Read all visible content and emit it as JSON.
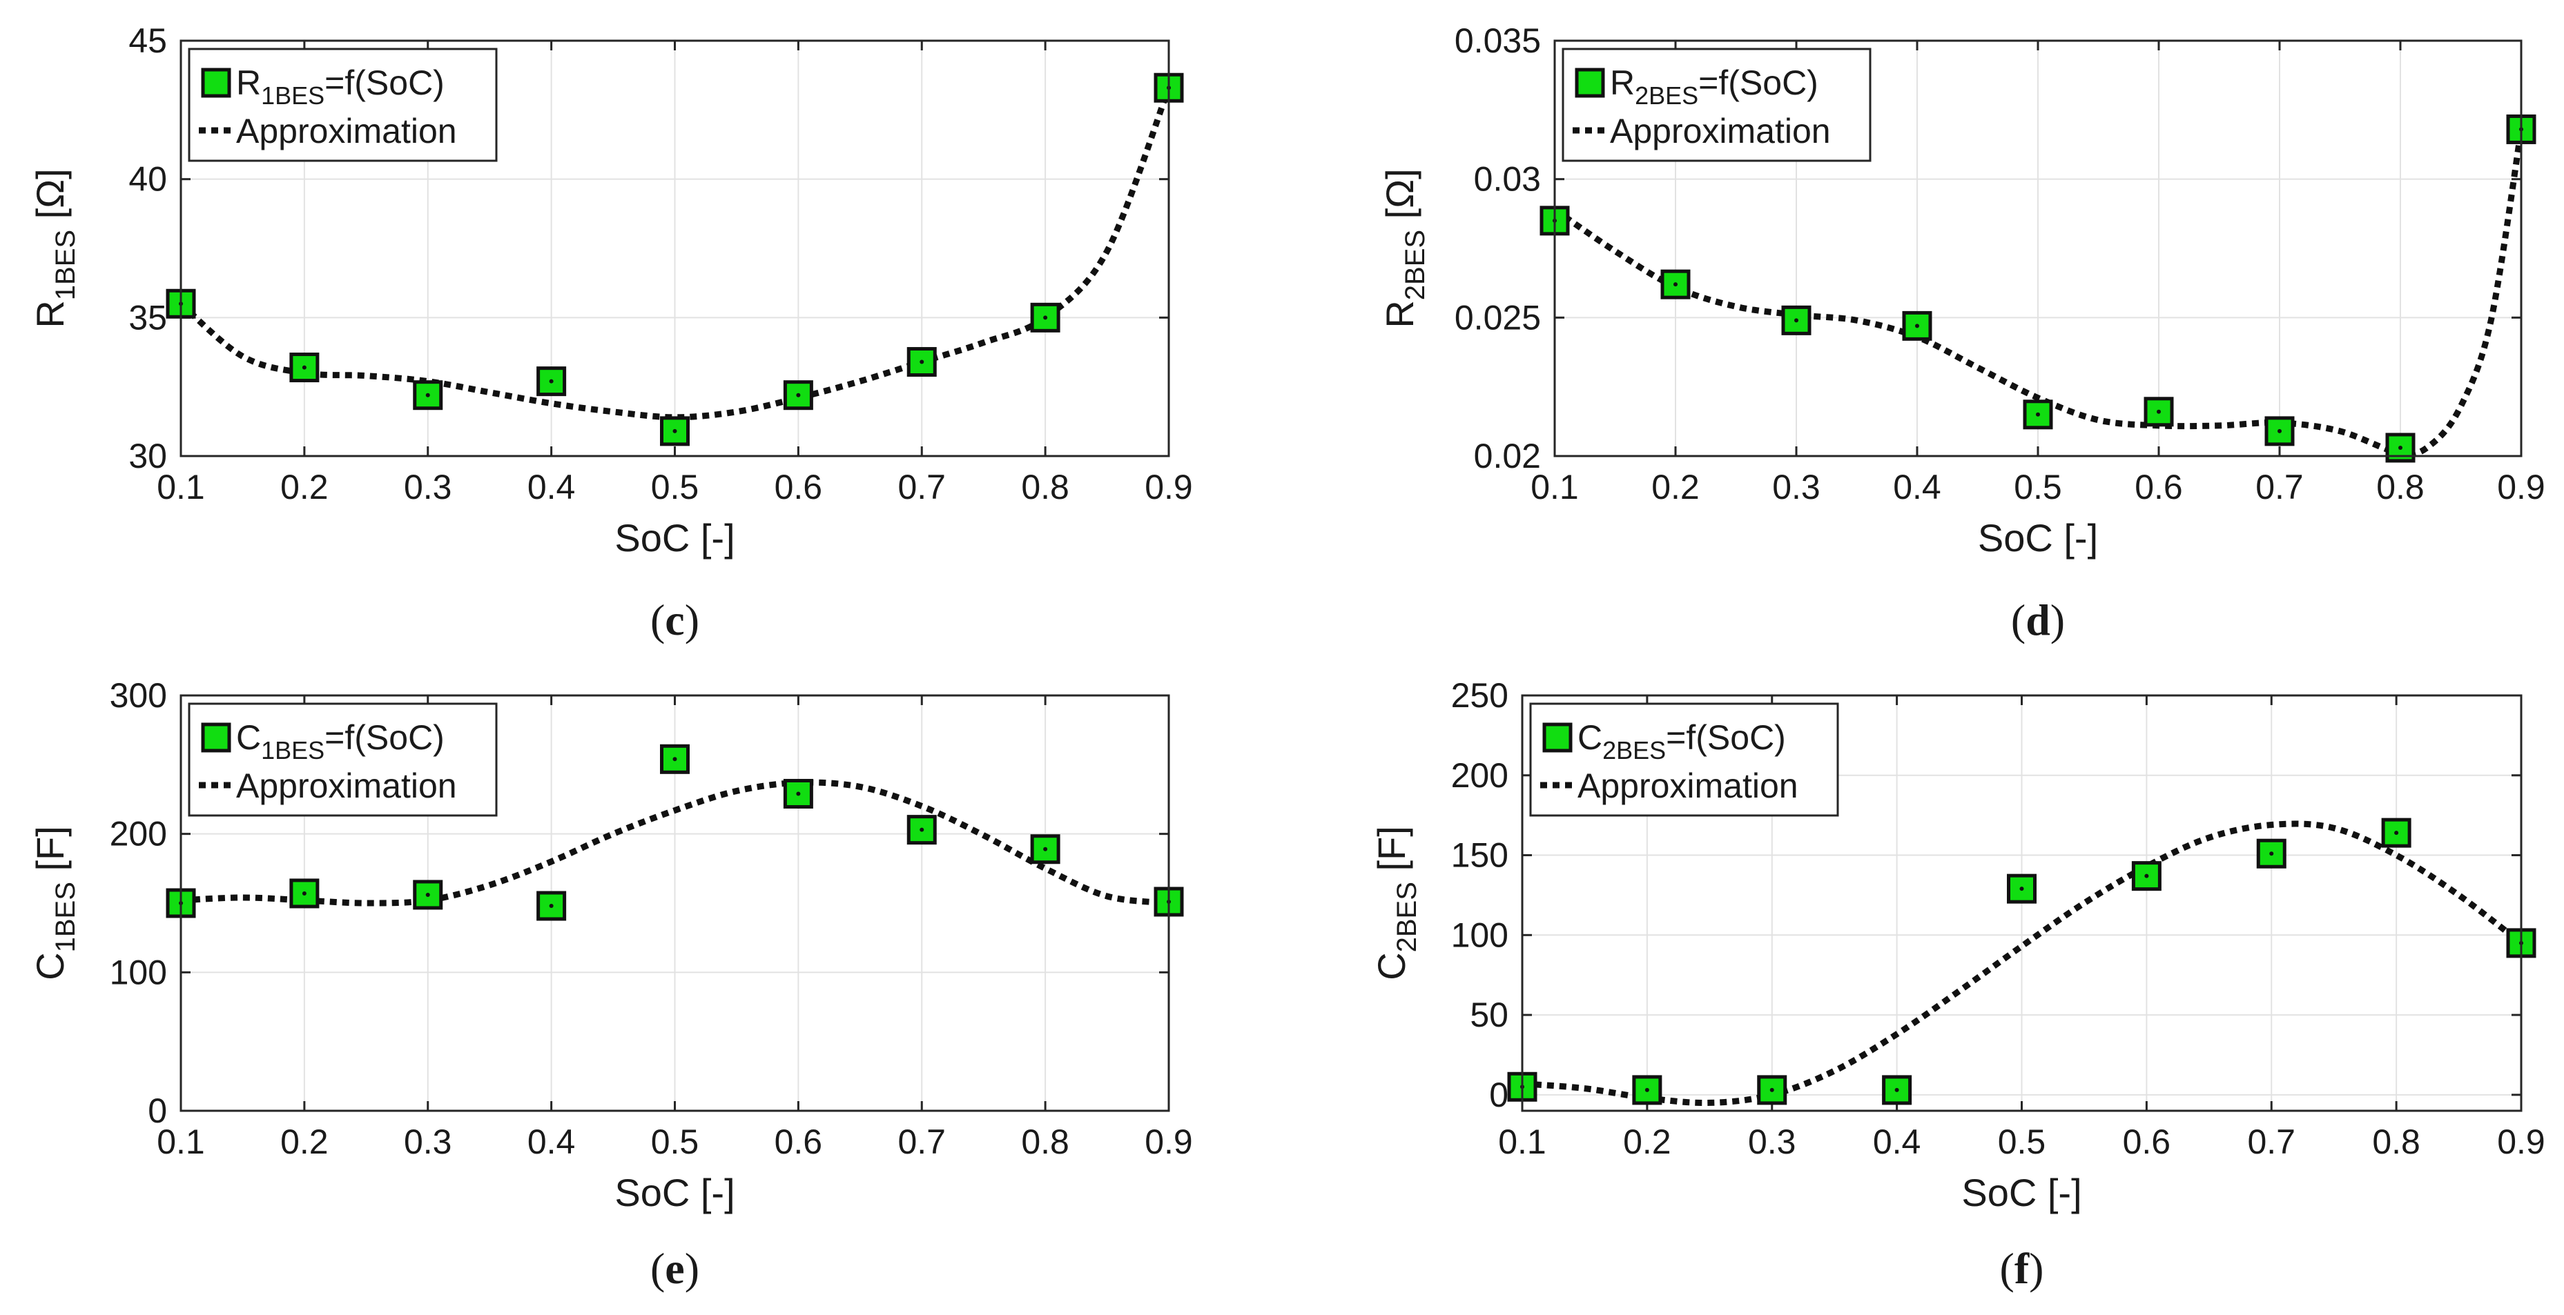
{
  "colors": {
    "marker_fill": "#11dd11",
    "marker_edge": "#111111",
    "approx_line": "#111111",
    "grid": "#e2e2e2"
  },
  "chart_data": [
    {
      "id": "c",
      "type": "scatter",
      "caption": "c",
      "x": [
        0.1,
        0.2,
        0.3,
        0.4,
        0.5,
        0.6,
        0.7,
        0.8,
        0.9
      ],
      "series": [
        {
          "name": "R1BES=f(SoC)",
          "values": [
            35.5,
            33.2,
            32.2,
            32.7,
            30.9,
            32.2,
            33.4,
            35.0,
            43.3
          ]
        },
        {
          "name": "Approximation",
          "style": "dotted-line",
          "x": [
            0.1,
            0.15,
            0.2,
            0.25,
            0.3,
            0.35,
            0.4,
            0.45,
            0.5,
            0.55,
            0.6,
            0.65,
            0.7,
            0.75,
            0.8,
            0.85,
            0.9
          ],
          "values": [
            35.5,
            33.6,
            33.0,
            32.9,
            32.7,
            32.3,
            31.9,
            31.6,
            31.4,
            31.6,
            32.1,
            32.7,
            33.4,
            34.1,
            35.0,
            37.4,
            43.3
          ]
        }
      ],
      "xlabel": "SoC [-]",
      "ylabel": {
        "main": "R",
        "sub": "1BES",
        "unit": " [Ω]"
      },
      "legend": {
        "marker_main": "R",
        "marker_sub": "1BES",
        "marker_suffix": "=f(SoC)",
        "line_label": "Approximation",
        "position": "top-left"
      },
      "xlim": [
        0.1,
        0.9
      ],
      "ylim": [
        30,
        45
      ],
      "grid": true,
      "xticks": [
        "0.1",
        "0.2",
        "0.3",
        "0.4",
        "0.5",
        "0.6",
        "0.7",
        "0.8",
        "0.9"
      ],
      "yticks": [
        "30",
        "35",
        "40",
        "45"
      ]
    },
    {
      "id": "d",
      "type": "scatter",
      "caption": "d",
      "x": [
        0.1,
        0.2,
        0.3,
        0.4,
        0.5,
        0.6,
        0.7,
        0.8,
        0.9
      ],
      "series": [
        {
          "name": "R2BES=f(SoC)",
          "values": [
            0.0285,
            0.0262,
            0.0249,
            0.0247,
            0.0215,
            0.0216,
            0.0209,
            0.0203,
            0.0318
          ]
        },
        {
          "name": "Approximation",
          "style": "dotted-line",
          "x": [
            0.1,
            0.15,
            0.2,
            0.25,
            0.3,
            0.35,
            0.4,
            0.45,
            0.5,
            0.55,
            0.6,
            0.65,
            0.7,
            0.75,
            0.8,
            0.825,
            0.85,
            0.875,
            0.9
          ],
          "values": [
            0.0289,
            0.0274,
            0.0261,
            0.0254,
            0.0251,
            0.0249,
            0.0243,
            0.0232,
            0.0221,
            0.0213,
            0.0211,
            0.0211,
            0.0212,
            0.0209,
            0.0201,
            0.0204,
            0.0218,
            0.0249,
            0.0318
          ]
        }
      ],
      "xlabel": "SoC [-]",
      "ylabel": {
        "main": "R",
        "sub": "2BES",
        "unit": " [Ω]"
      },
      "legend": {
        "marker_main": "R",
        "marker_sub": "2BES",
        "marker_suffix": "=f(SoC)",
        "line_label": "Approximation",
        "position": "top-left"
      },
      "xlim": [
        0.1,
        0.9
      ],
      "ylim": [
        0.02,
        0.035
      ],
      "grid": true,
      "xticks": [
        "0.1",
        "0.2",
        "0.3",
        "0.4",
        "0.5",
        "0.6",
        "0.7",
        "0.8",
        "0.9"
      ],
      "yticks": [
        "0.02",
        "0.025",
        "0.03",
        "0.035"
      ]
    },
    {
      "id": "e",
      "type": "scatter",
      "caption": "e",
      "x": [
        0.1,
        0.2,
        0.3,
        0.4,
        0.5,
        0.6,
        0.7,
        0.8,
        0.9
      ],
      "series": [
        {
          "name": "C1BES=f(SoC)",
          "values": [
            150,
            157,
            156,
            148,
            254,
            229,
            203,
            189,
            151
          ]
        },
        {
          "name": "Approximation",
          "style": "dotted-line",
          "x": [
            0.1,
            0.15,
            0.2,
            0.25,
            0.3,
            0.35,
            0.4,
            0.45,
            0.5,
            0.55,
            0.6,
            0.65,
            0.7,
            0.75,
            0.8,
            0.85,
            0.9
          ],
          "values": [
            152,
            154,
            152,
            150,
            152,
            163,
            180,
            200,
            217,
            231,
            237,
            234,
            220,
            199,
            175,
            155,
            150
          ]
        }
      ],
      "xlabel": "SoC [-]",
      "ylabel": {
        "main": "C",
        "sub": "1BES",
        "unit": " [F]"
      },
      "legend": {
        "marker_main": "C",
        "marker_sub": "1BES",
        "marker_suffix": "=f(SoC)",
        "line_label": "Approximation",
        "position": "top-left"
      },
      "xlim": [
        0.1,
        0.9
      ],
      "ylim": [
        0,
        300
      ],
      "grid": true,
      "xticks": [
        "0.1",
        "0.2",
        "0.3",
        "0.4",
        "0.5",
        "0.6",
        "0.7",
        "0.8",
        "0.9"
      ],
      "yticks": [
        "0",
        "100",
        "200",
        "300"
      ]
    },
    {
      "id": "f",
      "type": "scatter",
      "caption": "f",
      "x": [
        0.1,
        0.2,
        0.3,
        0.4,
        0.5,
        0.6,
        0.7,
        0.8,
        0.9
      ],
      "series": [
        {
          "name": "C2BES=f(SoC)",
          "values": [
            5,
            3,
            3,
            3,
            129,
            137,
            151,
            164,
            95
          ]
        },
        {
          "name": "Approximation",
          "style": "dotted-line",
          "x": [
            0.1,
            0.15,
            0.2,
            0.25,
            0.3,
            0.35,
            0.4,
            0.45,
            0.5,
            0.55,
            0.6,
            0.65,
            0.7,
            0.75,
            0.8,
            0.85,
            0.9
          ],
          "values": [
            7,
            4,
            -2,
            -5,
            0,
            15,
            38,
            65,
            93,
            120,
            143,
            161,
            169,
            167,
            150,
            125,
            95
          ]
        }
      ],
      "xlabel": "SoC [-]",
      "ylabel": {
        "main": "C",
        "sub": "2BES",
        "unit": " [F]"
      },
      "legend": {
        "marker_main": "C",
        "marker_sub": "2BES",
        "marker_suffix": "=f(SoC)",
        "line_label": "Approximation",
        "position": "top-left"
      },
      "xlim": [
        0.1,
        0.9
      ],
      "ylim": [
        -10,
        250
      ],
      "grid": true,
      "xticks": [
        "0.1",
        "0.2",
        "0.3",
        "0.4",
        "0.5",
        "0.6",
        "0.7",
        "0.8",
        "0.9"
      ],
      "yticks": [
        "0",
        "50",
        "100",
        "150",
        "200",
        "250"
      ]
    }
  ]
}
